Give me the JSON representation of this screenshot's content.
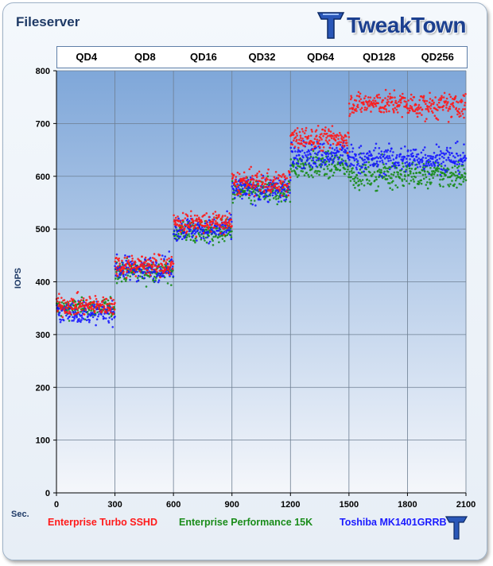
{
  "chart_data": {
    "type": "scatter",
    "title": "Fileserver",
    "ylabel": "IOPS",
    "xlabel": "Sec.",
    "xlim": [
      0,
      2100
    ],
    "ylim": [
      0,
      800
    ],
    "x_ticks": [
      0,
      300,
      600,
      900,
      1200,
      1500,
      1800,
      2100
    ],
    "y_ticks": [
      0,
      100,
      200,
      300,
      400,
      500,
      600,
      700,
      800
    ],
    "grid": true,
    "phase_labels": [
      "QD4",
      "QD8",
      "QD16",
      "QD32",
      "QD64",
      "QD128",
      "QD256"
    ],
    "legend_position": "bottom",
    "series": [
      {
        "name": "Enterprise Turbo SSHD",
        "color": "#ff1a1a",
        "phase_ranges": [
          [
            0,
            300
          ],
          [
            300,
            600
          ],
          [
            600,
            900
          ],
          [
            900,
            1200
          ],
          [
            1200,
            1500
          ],
          [
            1500,
            1800
          ],
          [
            1800,
            2100
          ]
        ],
        "phase_means": [
          355,
          432,
          512,
          588,
          672,
          738,
          733
        ],
        "phase_spread": [
          9,
          10,
          10,
          11,
          11,
          11,
          12
        ]
      },
      {
        "name": "Enterprise Performance 15K",
        "color": "#1a8c1a",
        "phase_ranges": [
          [
            0,
            300
          ],
          [
            300,
            600
          ],
          [
            600,
            900
          ],
          [
            900,
            1200
          ],
          [
            1200,
            1500
          ],
          [
            1500,
            1800
          ],
          [
            1800,
            2100
          ]
        ],
        "phase_means": [
          350,
          420,
          495,
          570,
          620,
          605,
          603
        ],
        "phase_spread": [
          9,
          10,
          11,
          11,
          12,
          13,
          13
        ]
      },
      {
        "name": "Toshiba MK1401GRRB",
        "color": "#1a1aff",
        "phase_ranges": [
          [
            0,
            300
          ],
          [
            300,
            600
          ],
          [
            600,
            900
          ],
          [
            900,
            1200
          ],
          [
            1200,
            1500
          ],
          [
            1500,
            1800
          ],
          [
            1800,
            2100
          ]
        ],
        "phase_means": [
          342,
          425,
          500,
          575,
          640,
          632,
          634
        ],
        "phase_spread": [
          10,
          11,
          11,
          12,
          13,
          13,
          13
        ]
      }
    ]
  },
  "branding": {
    "logo_text": "TweakTown"
  },
  "colors": {
    "plot_gradient_top": "#7fa7d9",
    "plot_gradient_bottom": "#f5f7fb",
    "gridline": "#6e7f92",
    "title": "#1f3a66"
  }
}
